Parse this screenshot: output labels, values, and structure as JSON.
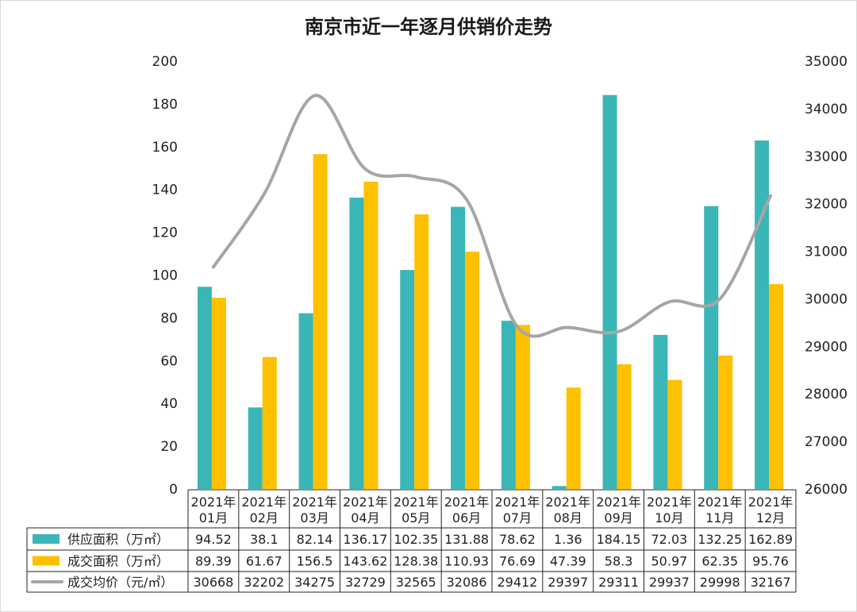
{
  "chart_data": {
    "type": "bar+line",
    "title": "南京市近一年逐月供销价走势",
    "categories": [
      [
        "2021年",
        "01月"
      ],
      [
        "2021年",
        "02月"
      ],
      [
        "2021年",
        "03月"
      ],
      [
        "2021年",
        "04月"
      ],
      [
        "2021年",
        "05月"
      ],
      [
        "2021年",
        "06月"
      ],
      [
        "2021年",
        "07月"
      ],
      [
        "2021年",
        "08月"
      ],
      [
        "2021年",
        "09月"
      ],
      [
        "2021年",
        "10月"
      ],
      [
        "2021年",
        "11月"
      ],
      [
        "2021年",
        "12月"
      ]
    ],
    "left_axis": {
      "ylim": [
        0,
        200
      ],
      "ticks": [
        "0",
        "20",
        "40",
        "60",
        "80",
        "100",
        "120",
        "140",
        "160",
        "180",
        "200"
      ]
    },
    "right_axis": {
      "ylim": [
        26000,
        35000
      ],
      "ticks": [
        "26000",
        "27000",
        "28000",
        "29000",
        "30000",
        "31000",
        "32000",
        "33000",
        "34000",
        "35000"
      ]
    },
    "series": [
      {
        "name": "供应面积（万㎡）",
        "kind": "bar",
        "axis": "left",
        "color": "#3bb6b6",
        "values": [
          94.52,
          38.1,
          82.14,
          136.17,
          102.35,
          131.88,
          78.62,
          1.36,
          184.15,
          72.03,
          132.25,
          162.89
        ],
        "labels": [
          "94.52",
          "38.1",
          "82.14",
          "136.17",
          "102.35",
          "131.88",
          "78.62",
          "1.36",
          "184.15",
          "72.03",
          "132.25",
          "162.89"
        ]
      },
      {
        "name": "成交面积（万㎡）",
        "kind": "bar",
        "axis": "left",
        "color": "#ffc000",
        "values": [
          89.39,
          61.67,
          156.5,
          143.62,
          128.38,
          110.93,
          76.69,
          47.39,
          58.3,
          50.97,
          62.35,
          95.76
        ],
        "labels": [
          "89.39",
          "61.67",
          "156.5",
          "143.62",
          "128.38",
          "110.93",
          "76.69",
          "47.39",
          "58.3",
          "50.97",
          "62.35",
          "95.76"
        ]
      },
      {
        "name": "成交均价（元/㎡）",
        "kind": "line",
        "axis": "right",
        "color": "#a6a6a6",
        "values": [
          30668,
          32202,
          34275,
          32729,
          32565,
          32086,
          29412,
          29397,
          29311,
          29937,
          29998,
          32167
        ],
        "labels": [
          "30668",
          "32202",
          "34275",
          "32729",
          "32565",
          "32086",
          "29412",
          "29397",
          "29311",
          "29937",
          "29998",
          "32167"
        ]
      }
    ]
  }
}
